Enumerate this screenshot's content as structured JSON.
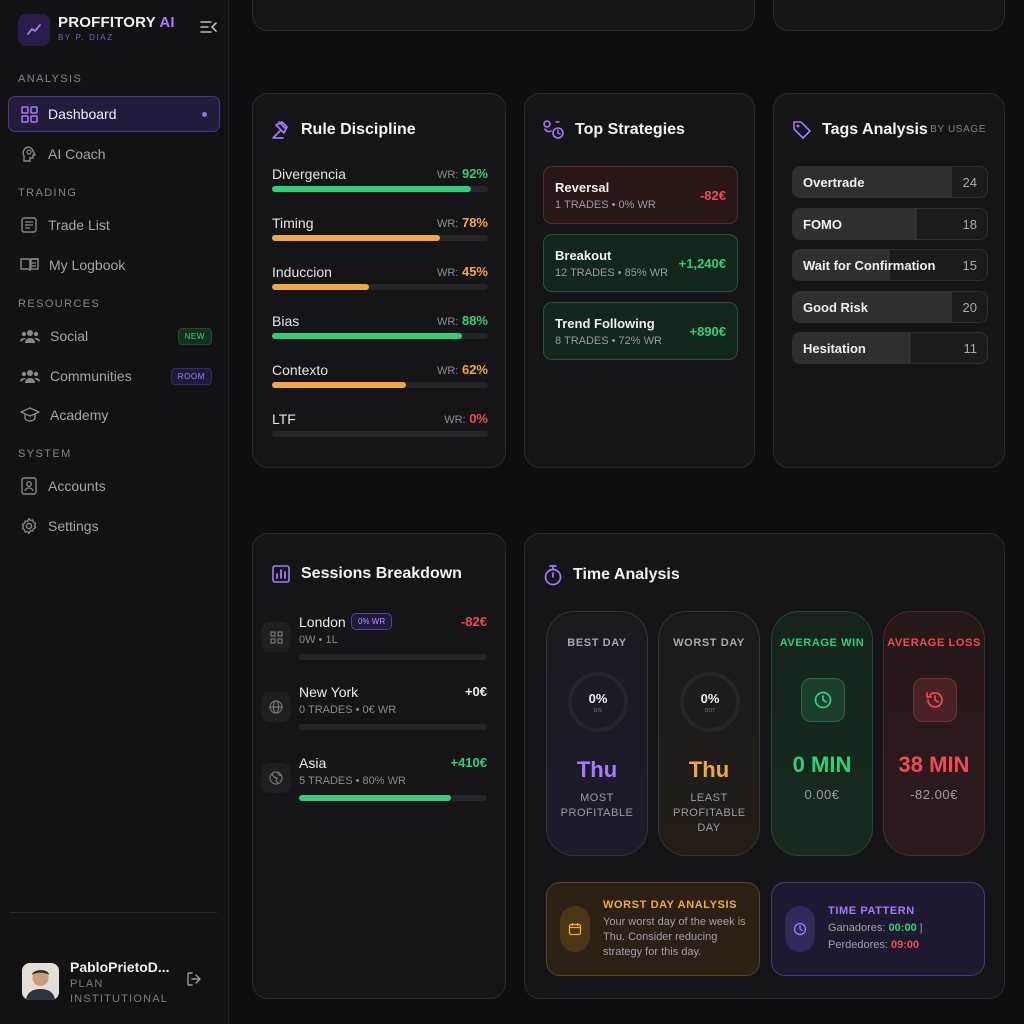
{
  "brand": {
    "name": "PROFFITORY",
    "ai": "AI",
    "sub": "BY P. DIAZ"
  },
  "sidebar": {
    "sections": {
      "analysis": "ANALYSIS",
      "trading": "TRADING",
      "resources": "RESOURCES",
      "system": "SYSTEM"
    },
    "items": {
      "dashboard": "Dashboard",
      "ai_coach": "AI Coach",
      "trade_list": "Trade List",
      "logbook": "My Logbook",
      "social": "Social",
      "social_badge": "NEW",
      "communities": "Communities",
      "communities_badge": "ROOM",
      "academy": "Academy",
      "accounts": "Accounts",
      "settings": "Settings"
    },
    "user": {
      "name": "PabloPrietoD...",
      "plan": "PLAN INSTITUTIONAL"
    }
  },
  "rule_discipline": {
    "title": "Rule Discipline",
    "wr_label": "WR:",
    "rows": [
      {
        "name": "Divergencia",
        "wr": "92%",
        "value": 0.92
      },
      {
        "name": "Timing",
        "wr": "78%",
        "value": 0.78
      },
      {
        "name": "Induccion",
        "wr": "45%",
        "value": 0.45
      },
      {
        "name": "Bias",
        "wr": "88%",
        "value": 0.88
      },
      {
        "name": "Contexto",
        "wr": "62%",
        "value": 0.62
      },
      {
        "name": "LTF",
        "wr": "0%",
        "value": 0
      }
    ]
  },
  "top_strategies": {
    "title": "Top Strategies",
    "items": [
      {
        "name": "Reversal",
        "stats": "1 TRADES • 0% WR",
        "pnl": "-82€"
      },
      {
        "name": "Breakout",
        "stats": "12 TRADES • 85% WR",
        "pnl": "+1,240€"
      },
      {
        "name": "Trend Following",
        "stats": "8 TRADES • 72% WR",
        "pnl": "+890€"
      }
    ]
  },
  "tags_analysis": {
    "title": "Tags Analysis",
    "sort": "BY USAGE",
    "items": [
      {
        "name": "Overtrade",
        "count": "24",
        "share": 0.82
      },
      {
        "name": "FOMO",
        "count": "18",
        "share": 0.64
      },
      {
        "name": "Wait for Confirmation",
        "count": "15",
        "share": 0.5
      },
      {
        "name": "Good Risk",
        "count": "20",
        "share": 0.82
      },
      {
        "name": "Hesitation",
        "count": "11",
        "share": 0.61
      }
    ]
  },
  "sessions": {
    "title": "Sessions Breakdown",
    "items": [
      {
        "name": "London",
        "badge": "0% WR",
        "stats": "0W • 1L",
        "pnl": "-82€",
        "progress": 0
      },
      {
        "name": "New York",
        "stats": "0 TRADES • 0€ WR",
        "pnl": "+0€",
        "progress": 0
      },
      {
        "name": "Asia",
        "stats": "5 TRADES • 80% WR",
        "pnl": "+410€",
        "progress": 0.81
      }
    ]
  },
  "time_analysis": {
    "title": "Time Analysis",
    "best_day": {
      "label": "BEST DAY",
      "pct": "0%",
      "ring_caption": "D/S",
      "day": "Thu",
      "sub": "MOST PROFITABLE"
    },
    "worst_day": {
      "label": "WORST DAY",
      "pct": "0%",
      "ring_caption": "DOT",
      "day": "Thu",
      "sub": "LEAST PROFITABLE DAY"
    },
    "avg_win": {
      "label": "AVERAGE WIN",
      "value": "0 MIN",
      "amount": "0.00€"
    },
    "avg_loss": {
      "label": "AVERAGE LOSS",
      "value": "38 MIN",
      "amount": "-82.00€"
    },
    "worst_day_analysis": {
      "title": "WORST DAY ANALYSIS",
      "text": "Your worst day of the week is Thu. Consider reducing strategy for this day."
    },
    "time_pattern": {
      "title": "TIME PATTERN",
      "winners_label": "Ganadores:",
      "winners_time": "00:00",
      "losers_label": "Perdedores:",
      "losers_time": "09:00"
    }
  },
  "colors": {
    "accent": "#a679ff",
    "green": "#2fcf7a",
    "amber": "#f0a940",
    "red": "#ef4b55"
  }
}
